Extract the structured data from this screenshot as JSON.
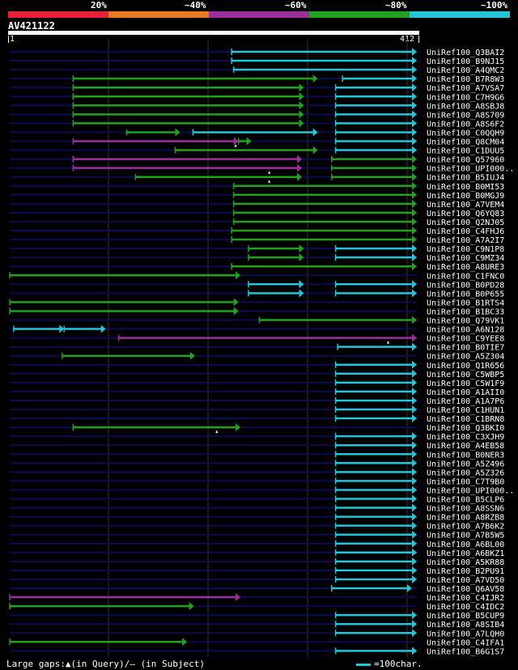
{
  "legend": {
    "labels": [
      "20%",
      "~40%",
      "~60%",
      "~80%",
      "~100%"
    ],
    "colors": [
      "#e8213a",
      "#e87a22",
      "#9a2f9e",
      "#22a020",
      "#22c6d8"
    ]
  },
  "query": {
    "name": "AV421122",
    "start": "1",
    "end": "412",
    "length": 412
  },
  "footer": {
    "gaps_text": "Large gaps:▲(in Query)/— (in Subject)",
    "scale_text": "=100char."
  },
  "chart_data": {
    "type": "alignment-overview",
    "query_length": 412,
    "hits": [
      {
        "name": "UniRef100_Q3BAI2",
        "color": "cyan",
        "segs": [
          [
            225,
            412
          ]
        ]
      },
      {
        "name": "UniRef100_B9NJ15",
        "color": "cyan",
        "segs": [
          [
            225,
            412
          ]
        ]
      },
      {
        "name": "UniRef100_A4QMC2",
        "color": "cyan",
        "segs": [
          [
            227,
            412
          ]
        ]
      },
      {
        "name": "UniRef100_B7R8W3",
        "color": "mixed",
        "segs": [
          [
            65,
            312,
            "green"
          ],
          [
            337,
            412,
            "cyan"
          ]
        ]
      },
      {
        "name": "UniRef100_A7VSA7",
        "color": "mixed",
        "segs": [
          [
            65,
            298,
            "green"
          ],
          [
            330,
            412,
            "cyan"
          ]
        ]
      },
      {
        "name": "UniRef100_C7H9G6",
        "color": "mixed",
        "segs": [
          [
            65,
            298,
            "green"
          ],
          [
            330,
            412,
            "cyan"
          ]
        ]
      },
      {
        "name": "UniRef100_A8SBJ8",
        "color": "mixed",
        "segs": [
          [
            65,
            298,
            "green"
          ],
          [
            330,
            412,
            "cyan"
          ]
        ]
      },
      {
        "name": "UniRef100_A8S709",
        "color": "mixed",
        "segs": [
          [
            65,
            298,
            "green"
          ],
          [
            330,
            412,
            "cyan"
          ]
        ]
      },
      {
        "name": "UniRef100_A8S6F2",
        "color": "mixed",
        "segs": [
          [
            65,
            298,
            "green"
          ],
          [
            330,
            412,
            "cyan"
          ]
        ]
      },
      {
        "name": "UniRef100_C0QQH9",
        "color": "mixed",
        "segs": [
          [
            119,
            173,
            "green"
          ],
          [
            186,
            312,
            "cyan"
          ],
          [
            330,
            412,
            "cyan"
          ]
        ]
      },
      {
        "name": "UniRef100_Q8CM04",
        "color": "mixed",
        "segs": [
          [
            65,
            232,
            "purple"
          ],
          [
            232,
            245,
            "green"
          ],
          [
            330,
            412,
            "cyan"
          ]
        ],
        "gaps": [
          229
        ]
      },
      {
        "name": "UniRef100_C1DUU5",
        "color": "mixed",
        "segs": [
          [
            168,
            312,
            "green"
          ],
          [
            330,
            412,
            "cyan"
          ]
        ]
      },
      {
        "name": "UniRef100_Q57960",
        "color": "mixed",
        "segs": [
          [
            65,
            296,
            "purple"
          ],
          [
            326,
            412,
            "green"
          ]
        ]
      },
      {
        "name": "UniRef100_UPI000..",
        "color": "mixed",
        "segs": [
          [
            65,
            296,
            "purple"
          ],
          [
            326,
            412,
            "green"
          ]
        ],
        "gaps": [
          263
        ]
      },
      {
        "name": "UniRef100_B5IUJ4",
        "color": "mixed",
        "segs": [
          [
            128,
            296,
            "green"
          ],
          [
            326,
            412,
            "green"
          ]
        ],
        "gaps": [
          263
        ]
      },
      {
        "name": "UniRef100_B0MI53",
        "color": "green",
        "segs": [
          [
            227,
            412
          ]
        ]
      },
      {
        "name": "UniRef100_B0MGJ9",
        "color": "green",
        "segs": [
          [
            227,
            412
          ]
        ]
      },
      {
        "name": "UniRef100_A7VEM4",
        "color": "green",
        "segs": [
          [
            227,
            412
          ]
        ]
      },
      {
        "name": "UniRef100_Q6YQ83",
        "color": "green",
        "segs": [
          [
            227,
            412
          ]
        ]
      },
      {
        "name": "UniRef100_Q2NJ05",
        "color": "green",
        "segs": [
          [
            227,
            412
          ]
        ]
      },
      {
        "name": "UniRef100_C4FHJ6",
        "color": "green",
        "segs": [
          [
            225,
            412
          ]
        ]
      },
      {
        "name": "UniRef100_A7A2I7",
        "color": "green",
        "segs": [
          [
            225,
            412
          ]
        ]
      },
      {
        "name": "UniRef100_C9N1P8",
        "color": "mixed",
        "segs": [
          [
            242,
            298,
            "green"
          ],
          [
            330,
            412,
            "cyan"
          ]
        ]
      },
      {
        "name": "UniRef100_C9MZ34",
        "color": "mixed",
        "segs": [
          [
            242,
            298,
            "green"
          ],
          [
            330,
            412,
            "cyan"
          ]
        ]
      },
      {
        "name": "UniRef100_A8URE3",
        "color": "green",
        "segs": [
          [
            225,
            412
          ]
        ]
      },
      {
        "name": "UniRef100_C1FNC0",
        "color": "green",
        "segs": [
          [
            1,
            234
          ]
        ]
      },
      {
        "name": "UniRef100_B0PD28",
        "color": "cyan",
        "segs": [
          [
            242,
            298
          ],
          [
            330,
            412
          ]
        ]
      },
      {
        "name": "UniRef100_B0P655",
        "color": "cyan",
        "segs": [
          [
            242,
            298
          ],
          [
            330,
            412
          ]
        ]
      },
      {
        "name": "UniRef100_B1RTS4",
        "color": "green",
        "segs": [
          [
            1,
            232
          ]
        ]
      },
      {
        "name": "UniRef100_B1BC33",
        "color": "green",
        "segs": [
          [
            1,
            232
          ]
        ]
      },
      {
        "name": "UniRef100_Q79VK1",
        "color": "green",
        "segs": [
          [
            253,
            412
          ]
        ]
      },
      {
        "name": "UniRef100_A6N128",
        "color": "cyan",
        "segs": [
          [
            5,
            56
          ],
          [
            56,
            98
          ]
        ]
      },
      {
        "name": "UniRef100_C9YEE8",
        "color": "purple",
        "segs": [
          [
            111,
            412
          ]
        ],
        "gaps": [
          383
        ]
      },
      {
        "name": "UniRef100_B0TIE7",
        "color": "cyan",
        "segs": [
          [
            332,
            412
          ]
        ]
      },
      {
        "name": "UniRef100_A5Z304",
        "color": "green",
        "segs": [
          [
            54,
            188
          ]
        ]
      },
      {
        "name": "UniRef100_Q1R656",
        "color": "cyan",
        "segs": [
          [
            330,
            412
          ]
        ]
      },
      {
        "name": "UniRef100_C5WBP5",
        "color": "cyan",
        "segs": [
          [
            330,
            412
          ]
        ]
      },
      {
        "name": "UniRef100_C5W1F9",
        "color": "cyan",
        "segs": [
          [
            330,
            412
          ]
        ]
      },
      {
        "name": "UniRef100_A1AII0",
        "color": "cyan",
        "segs": [
          [
            330,
            412
          ]
        ]
      },
      {
        "name": "UniRef100_A1A7P6",
        "color": "cyan",
        "segs": [
          [
            330,
            412
          ]
        ]
      },
      {
        "name": "UniRef100_C1HUN1",
        "color": "cyan",
        "segs": [
          [
            330,
            412
          ]
        ]
      },
      {
        "name": "UniRef100_C1BRN8",
        "color": "cyan",
        "segs": [
          [
            330,
            412
          ]
        ]
      },
      {
        "name": "UniRef100_Q3BKI0",
        "color": "green",
        "segs": [
          [
            65,
            234
          ]
        ],
        "gaps": [
          210
        ]
      },
      {
        "name": "UniRef100_C3XJH9",
        "color": "cyan",
        "segs": [
          [
            330,
            412
          ]
        ]
      },
      {
        "name": "UniRef100_A4EB58",
        "color": "cyan",
        "segs": [
          [
            330,
            412
          ]
        ]
      },
      {
        "name": "UniRef100_B0NER3",
        "color": "cyan",
        "segs": [
          [
            330,
            412
          ]
        ]
      },
      {
        "name": "UniRef100_A5Z496",
        "color": "cyan",
        "segs": [
          [
            330,
            412
          ]
        ]
      },
      {
        "name": "UniRef100_A5Z326",
        "color": "cyan",
        "segs": [
          [
            330,
            412
          ]
        ]
      },
      {
        "name": "UniRef100_C7T9B0",
        "color": "cyan",
        "segs": [
          [
            330,
            412
          ]
        ]
      },
      {
        "name": "UniRef100_UPI000..",
        "color": "cyan",
        "segs": [
          [
            330,
            412
          ]
        ]
      },
      {
        "name": "UniRef100_B5CLP6",
        "color": "cyan",
        "segs": [
          [
            330,
            412
          ]
        ]
      },
      {
        "name": "UniRef100_A8SSN6",
        "color": "cyan",
        "segs": [
          [
            330,
            412
          ]
        ]
      },
      {
        "name": "UniRef100_A8RZB8",
        "color": "cyan",
        "segs": [
          [
            330,
            412
          ]
        ]
      },
      {
        "name": "UniRef100_A7B6K2",
        "color": "cyan",
        "segs": [
          [
            330,
            412
          ]
        ]
      },
      {
        "name": "UniRef100_A7B5W5",
        "color": "cyan",
        "segs": [
          [
            330,
            412
          ]
        ]
      },
      {
        "name": "UniRef100_A6BL00",
        "color": "cyan",
        "segs": [
          [
            330,
            412
          ]
        ]
      },
      {
        "name": "UniRef100_A6BKZ1",
        "color": "cyan",
        "segs": [
          [
            330,
            412
          ]
        ]
      },
      {
        "name": "UniRef100_A5KR88",
        "color": "cyan",
        "segs": [
          [
            330,
            412
          ]
        ]
      },
      {
        "name": "UniRef100_B2PU91",
        "color": "cyan",
        "segs": [
          [
            330,
            412
          ]
        ]
      },
      {
        "name": "UniRef100_A7VD50",
        "color": "cyan",
        "segs": [
          [
            330,
            412
          ]
        ]
      },
      {
        "name": "UniRef100_Q6AV58",
        "color": "cyan",
        "segs": [
          [
            326,
            407
          ]
        ]
      },
      {
        "name": "UniRef100_C4IJR2",
        "color": "purple",
        "segs": [
          [
            1,
            234
          ]
        ]
      },
      {
        "name": "UniRef100_C4IDC2",
        "color": "green",
        "segs": [
          [
            1,
            187
          ]
        ]
      },
      {
        "name": "UniRef100_B5CUP9",
        "color": "cyan",
        "segs": [
          [
            330,
            412
          ]
        ]
      },
      {
        "name": "UniRef100_A8SIB4",
        "color": "cyan",
        "segs": [
          [
            330,
            412
          ]
        ]
      },
      {
        "name": "UniRef100_A7LQH0",
        "color": "cyan",
        "segs": [
          [
            330,
            412
          ]
        ]
      },
      {
        "name": "UniRef100_C4IFA1",
        "color": "green",
        "segs": [
          [
            1,
            180
          ]
        ]
      },
      {
        "name": "UniRef100_B6G1S7",
        "color": "cyan",
        "segs": [
          [
            330,
            412
          ]
        ]
      }
    ]
  }
}
